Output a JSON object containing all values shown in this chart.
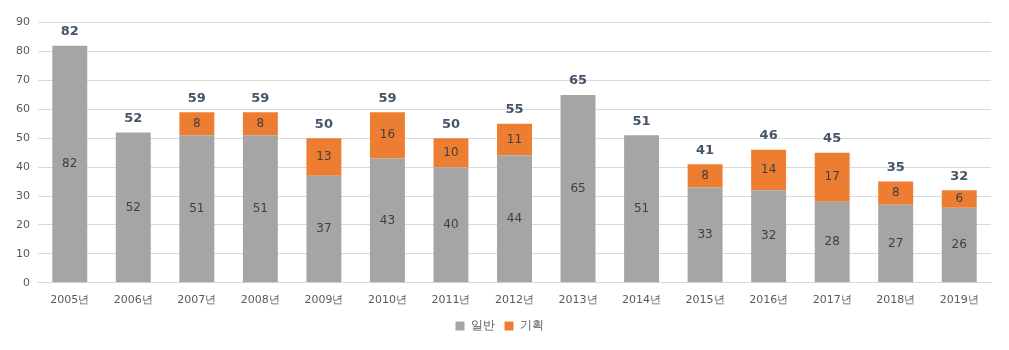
{
  "chart_data": {
    "type": "bar",
    "stacked": true,
    "categories": [
      "2005년",
      "2006년",
      "2007년",
      "2008년",
      "2009년",
      "2010년",
      "2011년",
      "2012년",
      "2013년",
      "2014년",
      "2015년",
      "2016년",
      "2017년",
      "2018년",
      "2019년"
    ],
    "series": [
      {
        "name": "일반",
        "color": "#a5a5a5",
        "values": [
          82,
          52,
          51,
          51,
          37,
          43,
          40,
          44,
          65,
          51,
          33,
          32,
          28,
          27,
          26
        ]
      },
      {
        "name": "기획",
        "color": "#ed7d31",
        "values": [
          null,
          null,
          8,
          8,
          13,
          16,
          10,
          11,
          null,
          null,
          8,
          14,
          17,
          8,
          6
        ]
      }
    ],
    "totals": [
      "82",
      "52",
      "59",
      "59",
      "50",
      "59",
      "50",
      "55",
      "65",
      "51",
      "41",
      "46",
      "45",
      "35",
      "32"
    ],
    "data_labels": true,
    "ylim": [
      0,
      90
    ],
    "yticks": [
      0,
      10,
      20,
      30,
      40,
      50,
      60,
      70,
      80,
      90
    ],
    "grid": "y",
    "legend": "bottom"
  }
}
